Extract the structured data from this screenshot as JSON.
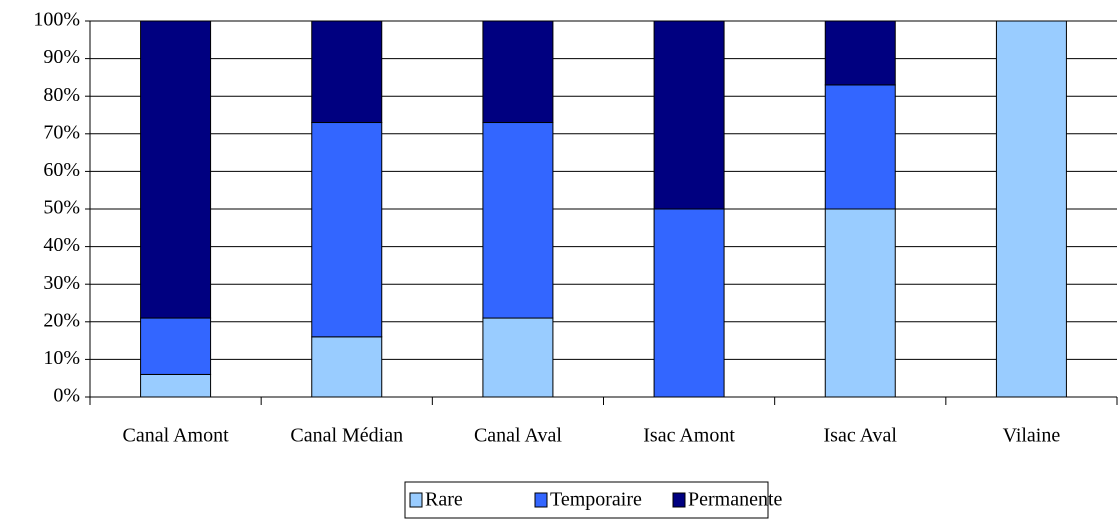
{
  "chart_data": {
    "type": "stacked_bar",
    "categories": [
      "Canal Amont",
      "Canal Médian",
      "Canal Aval",
      "Isac Amont",
      "Isac Aval",
      "Vilaine"
    ],
    "series": [
      {
        "name": "Rare",
        "color": "#99ccff",
        "values": [
          6,
          16,
          21,
          0,
          50,
          100
        ]
      },
      {
        "name": "Temporaire",
        "color": "#3366ff",
        "values": [
          15,
          57,
          52,
          50,
          33,
          0
        ]
      },
      {
        "name": "Permanente",
        "color": "#000080",
        "values": [
          79,
          27,
          27,
          50,
          17,
          0
        ]
      }
    ],
    "ylim": [
      0,
      100
    ],
    "yticks": [
      {
        "value": 0,
        "label": "0%"
      },
      {
        "value": 10,
        "label": "10%"
      },
      {
        "value": 20,
        "label": "20%"
      },
      {
        "value": 30,
        "label": "30%"
      },
      {
        "value": 40,
        "label": "40%"
      },
      {
        "value": 50,
        "label": "50%"
      },
      {
        "value": 60,
        "label": "60%"
      },
      {
        "value": 70,
        "label": "70%"
      },
      {
        "value": 80,
        "label": "80%"
      },
      {
        "value": 90,
        "label": "90%"
      },
      {
        "value": 100,
        "label": "100%"
      }
    ],
    "grid": true,
    "legend": "bottom"
  }
}
